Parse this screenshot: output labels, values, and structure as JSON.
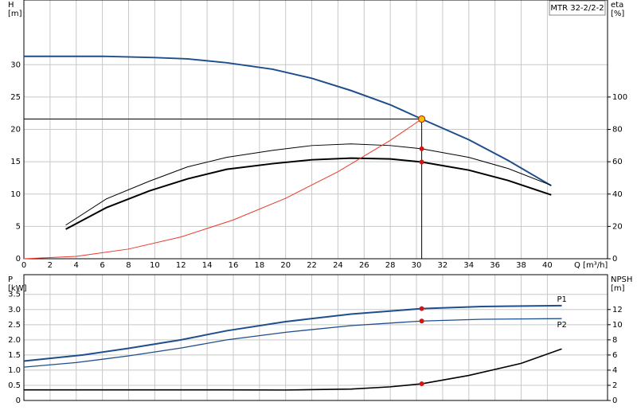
{
  "chart_data": [
    {
      "type": "line",
      "legend_text": "MTR 32-2/2-2",
      "ylabel": [
        "H",
        "[m]"
      ],
      "y2label": [
        "eta",
        "[%]"
      ],
      "xlabel": "Q [m³/h]",
      "xlim": [
        0,
        44.6
      ],
      "xticks": [
        0,
        2,
        4,
        6,
        8,
        10,
        12,
        14,
        16,
        18,
        20,
        22,
        24,
        26,
        28,
        30,
        32,
        34,
        36,
        38,
        40
      ],
      "ylim": [
        0,
        40
      ],
      "yticks": [
        0,
        5,
        10,
        15,
        20,
        25,
        30
      ],
      "y2lim": [
        0,
        160
      ],
      "y2ticks": [
        0,
        20,
        40,
        60,
        80,
        100
      ],
      "grid": true,
      "xtick_labels": true,
      "duty_q": 30.4,
      "duty_h": 21.6,
      "duty_color": "#f2c200",
      "series": [
        {
          "color": "#1f4e8c",
          "width": 2,
          "x": [
            0,
            6,
            10,
            12.5,
            15.5,
            19,
            22,
            25,
            28,
            30.4,
            34,
            37,
            40.3
          ],
          "values": [
            31.3,
            31.3,
            31.1,
            30.9,
            30.3,
            29.3,
            27.9,
            26.0,
            23.8,
            21.6,
            18.4,
            15.2,
            11.3
          ]
        },
        {
          "color": "#000000",
          "width": 1,
          "axis": "y2",
          "x": [
            3.2,
            6.3,
            9.6,
            12.5,
            15.5,
            19,
            22,
            25,
            28,
            30.4,
            34,
            37,
            40.3
          ],
          "values": [
            20.8,
            37,
            48,
            56.8,
            62.7,
            67,
            70,
            71,
            70,
            68,
            62.7,
            55.8,
            45.4
          ]
        },
        {
          "color": "#000000",
          "width": 2,
          "axis": "y2",
          "x": [
            3.2,
            6.3,
            9.6,
            12.5,
            15.5,
            19,
            22,
            25,
            28,
            30.4,
            34,
            37,
            40.3
          ],
          "values": [
            18.3,
            31.6,
            42,
            49.4,
            55.3,
            58.8,
            61.2,
            62.2,
            61.7,
            59.8,
            54.8,
            48.4,
            39.5
          ]
        },
        {
          "color": "#e83a2a",
          "width": 1,
          "x": [
            0,
            4,
            8,
            12,
            16,
            20,
            24,
            28,
            30.4
          ],
          "values": [
            0,
            0.37,
            1.5,
            3.37,
            6.0,
            9.35,
            13.46,
            18.3,
            21.6
          ]
        }
      ]
    },
    {
      "type": "line",
      "ylabel": [
        "P",
        "[kW]"
      ],
      "y2label": [
        "NPSH",
        "[m]"
      ],
      "xlim": [
        0,
        44.6
      ],
      "xticks": [
        0,
        2,
        4,
        6,
        8,
        10,
        12,
        14,
        16,
        18,
        20,
        22,
        24,
        26,
        28,
        30,
        32,
        34,
        36,
        38,
        40
      ],
      "ylim": [
        0,
        4.15
      ],
      "yticks": [
        0,
        0.5,
        {
          "value": 1,
          "label": "1.0"
        },
        1.5,
        {
          "value": 2,
          "label": "2.0"
        },
        2.5,
        {
          "value": 3,
          "label": "3.0"
        },
        3.5
      ],
      "y2lim": [
        0,
        16.6
      ],
      "y2ticks": [
        0,
        2,
        4,
        6,
        8,
        10,
        12
      ],
      "grid": true,
      "xtick_labels": false,
      "duty_q": 30.4,
      "series": [
        {
          "name": "P1",
          "color": "#1f4e8c",
          "width": 2,
          "x": [
            0,
            4.5,
            8,
            12,
            15.5,
            20,
            25,
            30.4,
            35,
            41.1
          ],
          "values": [
            1.3,
            1.5,
            1.72,
            2.0,
            2.3,
            2.6,
            2.85,
            3.03,
            3.1,
            3.13
          ]
        },
        {
          "name": "P2",
          "color": "#1f4e8c",
          "width": 1.3,
          "x": [
            0,
            4,
            8,
            12,
            15.5,
            20,
            25,
            30.4,
            35,
            41.1
          ],
          "values": [
            1.1,
            1.25,
            1.47,
            1.73,
            2.0,
            2.25,
            2.47,
            2.62,
            2.68,
            2.7
          ]
        },
        {
          "color": "#000000",
          "width": 1.6,
          "axis": "y2",
          "x": [
            0,
            15.5,
            20,
            25,
            28,
            30.4,
            34,
            38,
            41.1
          ],
          "values": [
            1.4,
            1.4,
            1.38,
            1.5,
            1.8,
            2.2,
            3.3,
            4.9,
            6.8
          ]
        }
      ]
    }
  ]
}
